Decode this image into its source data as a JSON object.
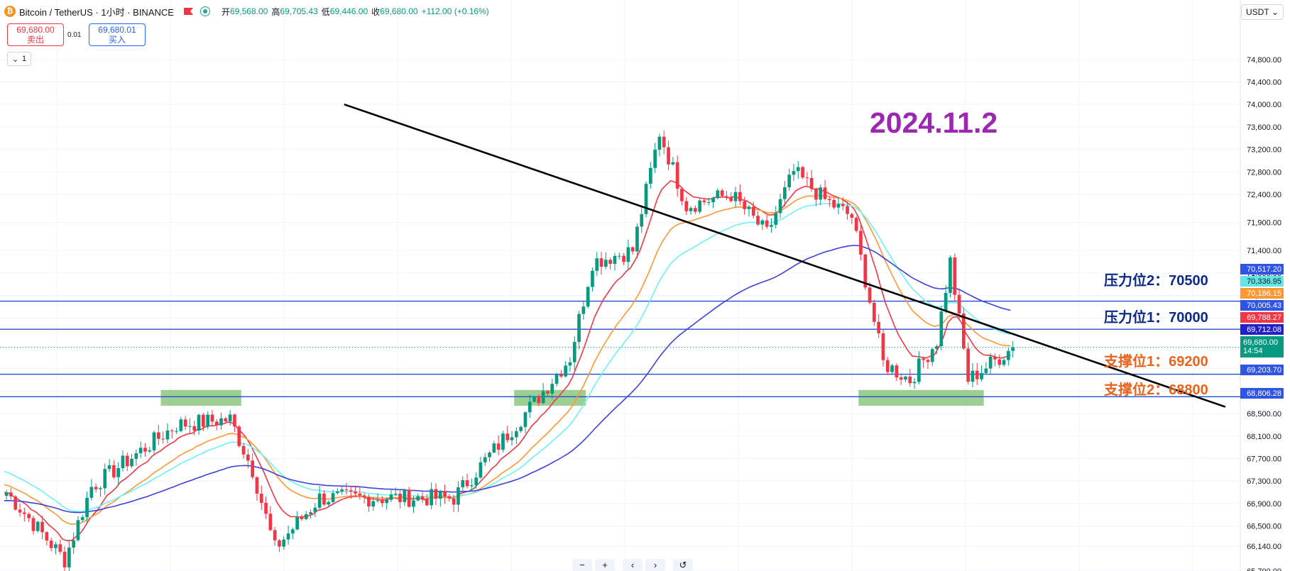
{
  "header": {
    "symbol": "Bitcoin / TetherUS · 1小时 · BINANCE",
    "open_label": "开",
    "open": "69,568.00",
    "high_label": "高",
    "high": "69,705.43",
    "low_label": "低",
    "low": "69,446.00",
    "close_label": "收",
    "close": "69,680.00",
    "change": "+112.00 (+0.16%)"
  },
  "trade": {
    "sell_price": "69,680.00",
    "sell_label": "卖出",
    "spread": "0.01",
    "buy_price": "69,680.01",
    "buy_label": "买入",
    "collapse_count": "1"
  },
  "currency": "USDT",
  "annotations": {
    "date": "2024.11.2",
    "resistance2": "压力位2：70500",
    "resistance1": "压力位1：70000",
    "support1": "支撑位1：69200",
    "support2": "支撑位2：68800"
  },
  "price_badges": {
    "b1": "70,517.20",
    "b2": "70,336.95",
    "b3": "70,186.15",
    "b4": "70,005.43",
    "b5": "69,788.27",
    "b6": "69,712.08",
    "b7": "69,680.00",
    "countdown": "14:54",
    "b8": "69,203.70",
    "b9": "68,806.28"
  },
  "colors": {
    "up": "#089981",
    "down": "#f23645",
    "ma_red": "#f23645",
    "ma_orange": "#ff9833",
    "ma_cyan": "#6ef2f2",
    "ma_blue": "#3f3fdb",
    "hline": "#1e4fd8",
    "zone": "#7cbf6f",
    "trend": "#000000",
    "resist_text": "#0d2a8a",
    "support_text": "#e8631c"
  },
  "nav_buttons": [
    "−",
    "+",
    "‹",
    "›",
    "↺"
  ],
  "chart_data": {
    "type": "candlestick",
    "symbol": "BTCUSDT",
    "interval": "1h",
    "ylim": [
      65700,
      75100
    ],
    "y_ticks": [
      74800,
      74400,
      74000,
      73600,
      73200,
      72800,
      72400,
      71900,
      71400,
      71000,
      70600,
      70200,
      69300,
      68900,
      68500,
      68100,
      67700,
      67300,
      66900,
      66500,
      66140,
      65700
    ],
    "y_tick_labels": [
      "74,800.00",
      "74,400.00",
      "74,000.00",
      "73,600.00",
      "73,200.00",
      "72,800.00",
      "72,400.00",
      "71,900.00",
      "71,400.00",
      "71,000.00",
      "70,600.00",
      "70,200.00",
      "69,300.00",
      "68,900.00",
      "68,500.00",
      "68,100.00",
      "67,700.00",
      "67,300.00",
      "66,900.00",
      "66,500.00",
      "66,140.00",
      "65,700.00"
    ],
    "levels": [
      {
        "name": "压力位2",
        "value": 70500
      },
      {
        "name": "压力位1",
        "value": 70000
      },
      {
        "name": "支撑位1",
        "value": 69200
      },
      {
        "name": "支撑位2",
        "value": 68800
      }
    ],
    "trendline": {
      "start": {
        "bar": 76,
        "price": 74000
      },
      "end": {
        "bar": 273,
        "price": 68620
      }
    },
    "key_points": [
      {
        "bar": 0,
        "price": 67100
      },
      {
        "bar": 13,
        "price": 65900
      },
      {
        "bar": 19,
        "price": 67200
      },
      {
        "bar": 38,
        "price": 68300
      },
      {
        "bar": 50,
        "price": 68400
      },
      {
        "bar": 55,
        "price": 67500
      },
      {
        "bar": 60,
        "price": 66100
      },
      {
        "bar": 70,
        "price": 67000
      },
      {
        "bar": 100,
        "price": 67000
      },
      {
        "bar": 118,
        "price": 68700
      },
      {
        "bar": 126,
        "price": 69500
      },
      {
        "bar": 131,
        "price": 71200
      },
      {
        "bar": 140,
        "price": 71400
      },
      {
        "bar": 146,
        "price": 73500
      },
      {
        "bar": 152,
        "price": 72200
      },
      {
        "bar": 162,
        "price": 72400
      },
      {
        "bar": 170,
        "price": 71700
      },
      {
        "bar": 176,
        "price": 72800
      },
      {
        "bar": 183,
        "price": 72300
      },
      {
        "bar": 189,
        "price": 72000
      },
      {
        "bar": 196,
        "price": 69400
      },
      {
        "bar": 202,
        "price": 69100
      },
      {
        "bar": 208,
        "price": 69800
      },
      {
        "bar": 211,
        "price": 71200
      },
      {
        "bar": 215,
        "price": 69100
      },
      {
        "bar": 222,
        "price": 69500
      },
      {
        "bar": 225,
        "price": 69680
      }
    ],
    "moving_averages": [
      {
        "color": "red",
        "last": 69788.27
      },
      {
        "color": "orange",
        "last": 70186.15
      },
      {
        "color": "cyan",
        "last": 70336.95
      },
      {
        "color": "blue",
        "last": 69712.08
      }
    ],
    "last_price": 69680.0
  }
}
